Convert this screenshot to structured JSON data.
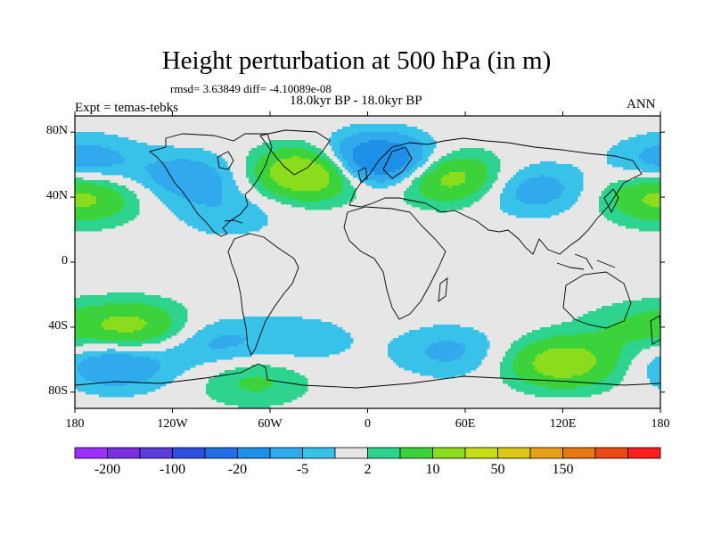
{
  "title": "Height perturbation at 500 hPa (in m)",
  "stats": "rmsd= 3.63849 diff= -4.10089e-08",
  "period": "18.0kyr BP - 18.0kyr BP",
  "experiment": "Expt = temas-tebks",
  "season": "ANN",
  "map": {
    "lon_range": [
      -180,
      180
    ],
    "lat_range": [
      -90,
      90
    ],
    "background_color": "#e6e6e6",
    "lat_ticks": [
      {
        "label": "80N",
        "lat": 80
      },
      {
        "label": "40N",
        "lat": 40
      },
      {
        "label": "0",
        "lat": 0
      },
      {
        "label": "40S",
        "lat": -40
      },
      {
        "label": "80S",
        "lat": -80
      }
    ],
    "lon_ticks": [
      {
        "label": "180",
        "lon": -180
      },
      {
        "label": "120W",
        "lon": -120
      },
      {
        "label": "60W",
        "lon": -60
      },
      {
        "label": "0",
        "lon": 0
      },
      {
        "label": "60E",
        "lon": 60
      },
      {
        "label": "120E",
        "lon": 120
      },
      {
        "label": "180",
        "lon": 180
      }
    ]
  },
  "colorbar": {
    "colors": [
      "#9b30ff",
      "#7a2fe0",
      "#5b3bdc",
      "#2f4fe0",
      "#1f6fe6",
      "#1f90e8",
      "#30aaec",
      "#38c2ea",
      "#e6e6e6",
      "#2ed48e",
      "#3cd23c",
      "#8cdc1e",
      "#c6dc14",
      "#dcc814",
      "#e8a014",
      "#e87814",
      "#ec4a14",
      "#ff1e1e"
    ],
    "labels": [
      {
        "text": "-200",
        "index": 1
      },
      {
        "text": "-100",
        "index": 3
      },
      {
        "text": "-20",
        "index": 5
      },
      {
        "text": "-5",
        "index": 7
      },
      {
        "text": "2",
        "index": 9
      },
      {
        "text": "10",
        "index": 11
      },
      {
        "text": "50",
        "index": 13
      },
      {
        "text": "150",
        "index": 15
      }
    ]
  },
  "field": {
    "description_units": "m",
    "anomalies": [
      {
        "lon": -175,
        "lat": 62,
        "value": -8
      },
      {
        "lon": -110,
        "lat": 52,
        "value": -8
      },
      {
        "lon": -35,
        "lat": 55,
        "value": 20
      },
      {
        "lon": 5,
        "lat": 62,
        "value": -22
      },
      {
        "lon": 50,
        "lat": 52,
        "value": 14
      },
      {
        "lon": 100,
        "lat": 45,
        "value": -8
      },
      {
        "lon": 175,
        "lat": 40,
        "value": 7
      },
      {
        "lon": -170,
        "lat": 40,
        "value": 6
      },
      {
        "lon": -85,
        "lat": 30,
        "value": -4
      },
      {
        "lon": -145,
        "lat": -40,
        "value": 12
      },
      {
        "lon": -155,
        "lat": -63,
        "value": -10
      },
      {
        "lon": -95,
        "lat": -50,
        "value": -6
      },
      {
        "lon": -40,
        "lat": -48,
        "value": -4
      },
      {
        "lon": -70,
        "lat": -73,
        "value": 6
      },
      {
        "lon": 50,
        "lat": -55,
        "value": -6
      },
      {
        "lon": 120,
        "lat": -62,
        "value": 14
      },
      {
        "lon": 165,
        "lat": -40,
        "value": 5
      }
    ]
  }
}
